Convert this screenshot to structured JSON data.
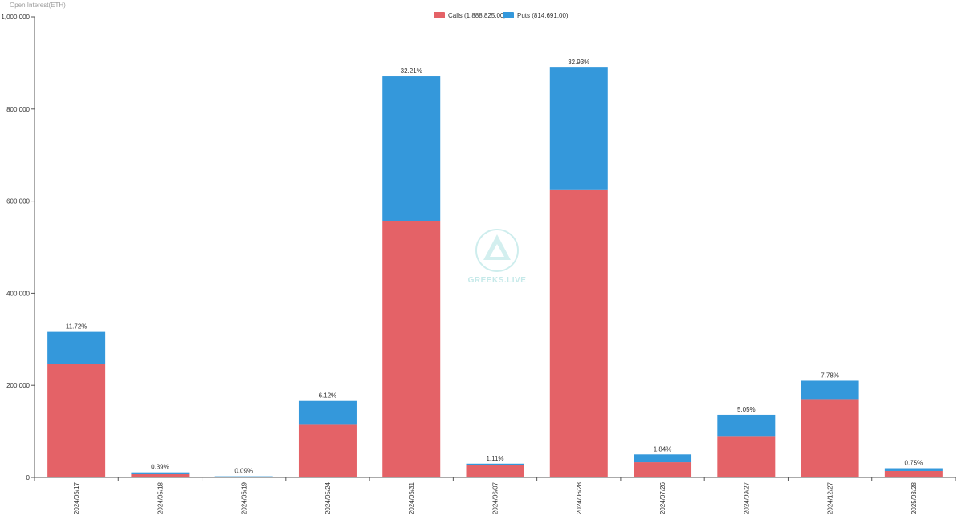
{
  "chart_data": {
    "type": "bar",
    "stacked": true,
    "ylabel": "Open Interest(ETH)",
    "ylim": [
      0,
      1000000
    ],
    "y_ticks": [
      0,
      200000,
      400000,
      600000,
      800000,
      1000000
    ],
    "y_tick_labels": [
      "0",
      "200,000",
      "400,000",
      "600,000",
      "800,000",
      "1,000,000"
    ],
    "categories": [
      "2024/05/17",
      "2024/05/18",
      "2024/05/19",
      "2024/05/24",
      "2024/05/31",
      "2024/06/07",
      "2024/06/28",
      "2024/07/26",
      "2024/09/27",
      "2024/12/27",
      "2025/03/28"
    ],
    "series": [
      {
        "name": "Calls (1,888,825.00)",
        "color": "#e46267",
        "values": [
          247000,
          7000,
          1700,
          116000,
          556000,
          27000,
          624000,
          33000,
          90000,
          170000,
          14000
        ]
      },
      {
        "name": "Puts (814,691.00)",
        "color": "#3498db",
        "values": [
          69000,
          4000,
          700,
          50000,
          315000,
          3000,
          266000,
          17000,
          46000,
          40000,
          6000
        ]
      }
    ],
    "data_labels": [
      "11.72%",
      "0.39%",
      "0.09%",
      "6.12%",
      "32.21%",
      "1.11%",
      "32.93%",
      "1.84%",
      "5.05%",
      "7.78%",
      "0.75%"
    ],
    "legend_position": "top-center",
    "grid": false
  },
  "watermark": {
    "text": "GREEKS.LIVE",
    "color": "#bfe7e7"
  }
}
